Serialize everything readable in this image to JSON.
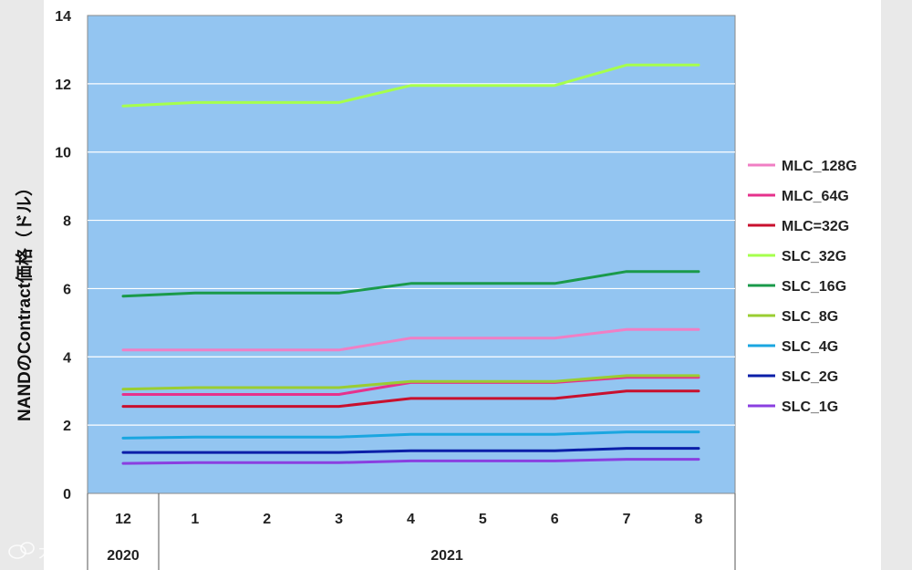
{
  "chart_data": {
    "type": "line",
    "ylabel": "NANDのContract価格（ドル）",
    "ylim": [
      0,
      14
    ],
    "y_ticks": [
      "0",
      "2",
      "4",
      "6",
      "8",
      "10",
      "12",
      "14"
    ],
    "x": [
      "12",
      "1",
      "2",
      "3",
      "4",
      "5",
      "6",
      "7",
      "8"
    ],
    "x_groups": [
      {
        "label": "2020",
        "span": 1
      },
      {
        "label": "2021",
        "span": 8
      }
    ],
    "grid": true,
    "plot_background": "#93c5f1",
    "legend_position": "right",
    "series": [
      {
        "name": "MLC_128G",
        "color": "#f07fc4",
        "values": [
          4.2,
          4.2,
          4.2,
          4.2,
          4.55,
          4.55,
          4.55,
          4.8,
          4.8
        ]
      },
      {
        "name": "MLC_64G",
        "color": "#e6328c",
        "values": [
          2.9,
          2.9,
          2.9,
          2.9,
          3.25,
          3.25,
          3.25,
          3.4,
          3.4
        ]
      },
      {
        "name": "MLC=32G",
        "color": "#c8102e",
        "values": [
          2.55,
          2.55,
          2.55,
          2.55,
          2.78,
          2.78,
          2.78,
          3.0,
          3.0
        ]
      },
      {
        "name": "SLC_32G",
        "color": "#a6ff4d",
        "values": [
          11.35,
          11.45,
          11.45,
          11.45,
          11.95,
          11.95,
          11.95,
          12.55,
          12.55
        ]
      },
      {
        "name": "SLC_16G",
        "color": "#1a9a4a",
        "values": [
          5.78,
          5.87,
          5.87,
          5.87,
          6.15,
          6.15,
          6.15,
          6.5,
          6.5
        ]
      },
      {
        "name": "SLC_8G",
        "color": "#9acd32",
        "values": [
          3.05,
          3.1,
          3.1,
          3.1,
          3.28,
          3.28,
          3.28,
          3.45,
          3.45
        ]
      },
      {
        "name": "SLC_4G",
        "color": "#1aa6e0",
        "values": [
          1.62,
          1.65,
          1.65,
          1.65,
          1.73,
          1.73,
          1.73,
          1.8,
          1.8
        ]
      },
      {
        "name": "SLC_2G",
        "color": "#0b1fa8",
        "values": [
          1.2,
          1.2,
          1.2,
          1.2,
          1.25,
          1.25,
          1.25,
          1.32,
          1.32
        ]
      },
      {
        "name": "SLC_1G",
        "color": "#8a3fe0",
        "values": [
          0.88,
          0.9,
          0.9,
          0.9,
          0.95,
          0.95,
          0.95,
          1.0,
          1.0
        ]
      }
    ]
  },
  "watermark": {
    "text": "大數跨境",
    "icon": "chat-bubble-icon"
  }
}
